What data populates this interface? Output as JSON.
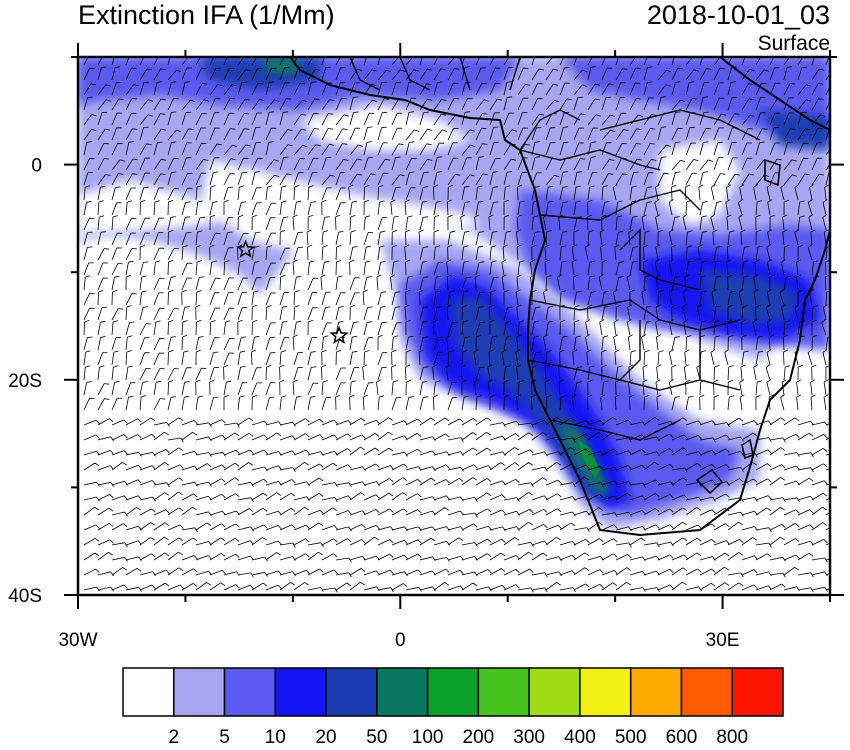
{
  "title": "Extinction IFA (1/Mm)",
  "datetime": "2018-10-01_03",
  "level": "Surface",
  "axes": {
    "x_ticks": [
      {
        "value": -30,
        "label": "30W"
      },
      {
        "value": 0,
        "label": "0"
      },
      {
        "value": 30,
        "label": "30E"
      }
    ],
    "y_ticks": [
      {
        "value": 0,
        "label": "0"
      },
      {
        "value": -20,
        "label": "20S"
      },
      {
        "value": -40,
        "label": "40S"
      }
    ],
    "lon_range": [
      -30,
      40
    ],
    "lat_range": [
      -40,
      10
    ]
  },
  "colorbar": {
    "colors": [
      "#ffffff",
      "#a6a6f2",
      "#5a5af2",
      "#1414f5",
      "#1c3cb4",
      "#0a7860",
      "#0aa02a",
      "#46c41e",
      "#a0dc14",
      "#f0f014",
      "#ffaa00",
      "#ff5a00",
      "#ff1400"
    ],
    "labels": [
      "2",
      "5",
      "10",
      "20",
      "50",
      "100",
      "200",
      "300",
      "400",
      "500",
      "600",
      "800"
    ]
  },
  "markers": [
    {
      "name": "star",
      "lon": -14.4,
      "lat": -7.9
    },
    {
      "name": "star",
      "lon": -5.7,
      "lat": -15.9
    }
  ]
}
